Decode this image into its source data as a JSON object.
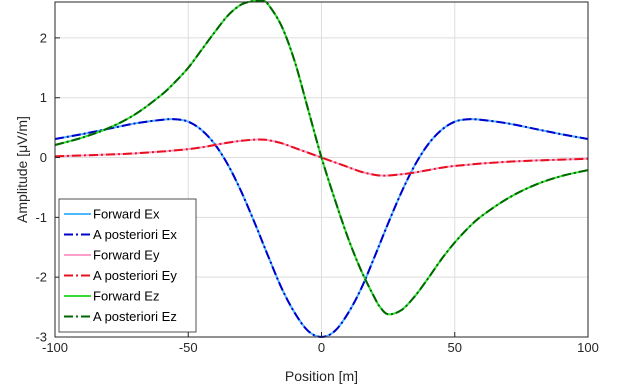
{
  "chart_data": {
    "type": "line",
    "xlabel": "Position [m]",
    "ylabel": "Amplitude [μV/m]",
    "xlim": [
      -100,
      100
    ],
    "ylim": [
      -3,
      2.6
    ],
    "xticks": [
      "-100",
      "-50",
      "0",
      "50",
      "100"
    ],
    "yticks": [
      "-3",
      "-2",
      "-1",
      "0",
      "1",
      "2"
    ],
    "grid": true,
    "legend_position": "bottom-left",
    "x": [
      -100,
      -90,
      -80,
      -70,
      -60,
      -55,
      -50,
      -45,
      -40,
      -35,
      -30,
      -25,
      -22,
      -20,
      -15,
      -10,
      -5,
      0,
      5,
      10,
      15,
      20,
      22,
      25,
      30,
      35,
      40,
      45,
      50,
      55,
      60,
      70,
      80,
      90,
      100
    ],
    "series": [
      {
        "name": "Forward Ex",
        "color": "#4db8ff",
        "dash": "solid",
        "values": [
          0.31,
          0.39,
          0.48,
          0.57,
          0.63,
          0.64,
          0.6,
          0.46,
          0.22,
          -0.13,
          -0.58,
          -1.1,
          -1.43,
          -1.65,
          -2.18,
          -2.6,
          -2.9,
          -3.0,
          -2.9,
          -2.6,
          -2.18,
          -1.65,
          -1.43,
          -1.1,
          -0.58,
          -0.13,
          0.22,
          0.46,
          0.6,
          0.64,
          0.63,
          0.57,
          0.48,
          0.39,
          0.31
        ]
      },
      {
        "name": "A posteriori Ex",
        "color": "#0000cc",
        "dash": "dashdot",
        "values": [
          0.31,
          0.39,
          0.48,
          0.57,
          0.63,
          0.64,
          0.6,
          0.46,
          0.22,
          -0.13,
          -0.58,
          -1.1,
          -1.43,
          -1.65,
          -2.18,
          -2.6,
          -2.9,
          -3.0,
          -2.9,
          -2.6,
          -2.18,
          -1.65,
          -1.43,
          -1.1,
          -0.58,
          -0.13,
          0.22,
          0.46,
          0.6,
          0.64,
          0.63,
          0.57,
          0.48,
          0.39,
          0.31
        ]
      },
      {
        "name": "Forward Ey",
        "color": "#ff9ec8",
        "dash": "solid",
        "values": [
          0.02,
          0.035,
          0.05,
          0.07,
          0.1,
          0.12,
          0.14,
          0.17,
          0.21,
          0.25,
          0.28,
          0.3,
          0.3,
          0.29,
          0.24,
          0.16,
          0.08,
          0.0,
          -0.08,
          -0.16,
          -0.24,
          -0.29,
          -0.3,
          -0.3,
          -0.28,
          -0.25,
          -0.21,
          -0.17,
          -0.14,
          -0.12,
          -0.1,
          -0.07,
          -0.05,
          -0.035,
          -0.02
        ]
      },
      {
        "name": "A posteriori Ey",
        "color": "#e8101e",
        "dash": "dashdot",
        "values": [
          0.02,
          0.035,
          0.05,
          0.07,
          0.1,
          0.12,
          0.14,
          0.17,
          0.21,
          0.25,
          0.28,
          0.3,
          0.3,
          0.29,
          0.24,
          0.16,
          0.08,
          0.0,
          -0.08,
          -0.16,
          -0.24,
          -0.29,
          -0.3,
          -0.3,
          -0.28,
          -0.25,
          -0.21,
          -0.17,
          -0.14,
          -0.12,
          -0.1,
          -0.07,
          -0.05,
          -0.035,
          -0.02
        ]
      },
      {
        "name": "Forward Ez",
        "color": "#33dd33",
        "dash": "solid",
        "values": [
          0.21,
          0.33,
          0.49,
          0.72,
          1.05,
          1.26,
          1.5,
          1.8,
          2.1,
          2.38,
          2.56,
          2.62,
          2.62,
          2.56,
          2.2,
          1.6,
          0.8,
          0.0,
          -0.7,
          -1.35,
          -1.9,
          -2.35,
          -2.5,
          -2.62,
          -2.55,
          -2.32,
          -2.02,
          -1.7,
          -1.42,
          -1.18,
          -0.98,
          -0.68,
          -0.46,
          -0.31,
          -0.21
        ]
      },
      {
        "name": "A posteriori Ez",
        "color": "#006600",
        "dash": "dashdot",
        "values": [
          0.21,
          0.33,
          0.49,
          0.72,
          1.05,
          1.26,
          1.5,
          1.8,
          2.1,
          2.38,
          2.56,
          2.62,
          2.62,
          2.56,
          2.2,
          1.6,
          0.8,
          0.0,
          -0.7,
          -1.35,
          -1.9,
          -2.35,
          -2.5,
          -2.62,
          -2.55,
          -2.32,
          -2.02,
          -1.7,
          -1.42,
          -1.18,
          -0.98,
          -0.68,
          -0.46,
          -0.31,
          -0.21
        ]
      }
    ]
  }
}
